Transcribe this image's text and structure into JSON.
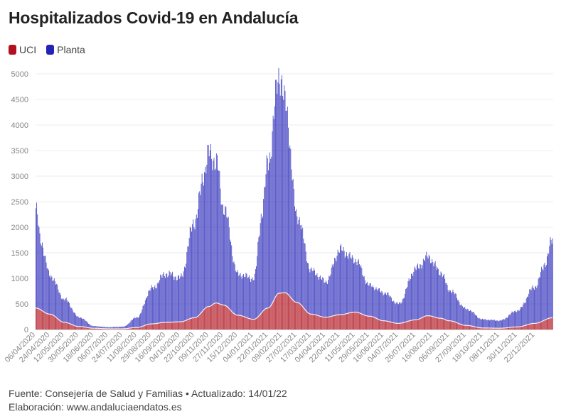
{
  "title": "Hospitalizados Covid-19 en Andalucía",
  "legend": [
    {
      "label": "UCI",
      "color": "#b0121f"
    },
    {
      "label": "Planta",
      "color": "#2323b8"
    }
  ],
  "footer": {
    "source": "Fuente: Consejería de Salud y Familias • Actualizado: 14/01/22",
    "credit": "Elaboración: www.andaluciaendatos.es"
  },
  "chart_data": {
    "type": "bar",
    "stacked": true,
    "title": "Hospitalizados Covid-19 en Andalucía",
    "xlabel": "",
    "ylabel": "",
    "ylim": [
      0,
      5000
    ],
    "yticks": [
      0,
      500,
      1000,
      1500,
      2000,
      2500,
      3000,
      3500,
      4000,
      4500,
      5000
    ],
    "x_tick_labels": [
      "06/04/2020",
      "24/04/2020",
      "12/05/2020",
      "30/05/2020",
      "18/06/2020",
      "06/07/2020",
      "24/07/2020",
      "11/08/2020",
      "29/08/2020",
      "16/09/2020",
      "04/10/2020",
      "22/10/2020",
      "09/11/2020",
      "27/11/2020",
      "15/12/2020",
      "04/01/2021",
      "22/01/2021",
      "09/02/2021",
      "27/02/2021",
      "17/03/2021",
      "04/04/2021",
      "22/04/2021",
      "11/05/2021",
      "29/05/2021",
      "16/06/2021",
      "04/07/2021",
      "26/07/2021",
      "16/08/2021",
      "06/09/2021",
      "27/09/2021",
      "18/10/2021",
      "08/11/2021",
      "30/11/2021",
      "22/12/2021"
    ],
    "grid": true,
    "legend_position": "top-left",
    "series": [
      {
        "name": "UCI",
        "color": "#b0121f",
        "keypoints": [
          [
            "2020-04-06",
            420
          ],
          [
            "2020-04-24",
            300
          ],
          [
            "2020-05-12",
            140
          ],
          [
            "2020-05-30",
            60
          ],
          [
            "2020-06-18",
            25
          ],
          [
            "2020-07-06",
            15
          ],
          [
            "2020-07-24",
            15
          ],
          [
            "2020-08-11",
            40
          ],
          [
            "2020-08-29",
            110
          ],
          [
            "2020-09-16",
            140
          ],
          [
            "2020-10-04",
            150
          ],
          [
            "2020-10-22",
            230
          ],
          [
            "2020-11-09",
            450
          ],
          [
            "2020-11-18",
            520
          ],
          [
            "2020-11-27",
            480
          ],
          [
            "2020-12-15",
            280
          ],
          [
            "2021-01-04",
            200
          ],
          [
            "2021-01-22",
            420
          ],
          [
            "2021-02-05",
            710
          ],
          [
            "2021-02-12",
            720
          ],
          [
            "2021-02-27",
            530
          ],
          [
            "2021-03-17",
            300
          ],
          [
            "2021-04-04",
            240
          ],
          [
            "2021-04-22",
            290
          ],
          [
            "2021-05-11",
            340
          ],
          [
            "2021-05-29",
            260
          ],
          [
            "2021-06-16",
            170
          ],
          [
            "2021-07-04",
            120
          ],
          [
            "2021-07-26",
            190
          ],
          [
            "2021-08-10",
            270
          ],
          [
            "2021-08-26",
            220
          ],
          [
            "2021-09-06",
            170
          ],
          [
            "2021-09-27",
            80
          ],
          [
            "2021-10-18",
            30
          ],
          [
            "2021-11-08",
            25
          ],
          [
            "2021-11-30",
            50
          ],
          [
            "2021-12-22",
            120
          ],
          [
            "2022-01-13",
            230
          ]
        ]
      },
      {
        "name": "Planta",
        "color": "#2323b8",
        "keypoints": [
          [
            "2020-04-06",
            1950
          ],
          [
            "2020-04-12",
            1350
          ],
          [
            "2020-04-24",
            750
          ],
          [
            "2020-05-12",
            450
          ],
          [
            "2020-05-30",
            180
          ],
          [
            "2020-06-18",
            40
          ],
          [
            "2020-07-06",
            30
          ],
          [
            "2020-07-24",
            40
          ],
          [
            "2020-08-11",
            200
          ],
          [
            "2020-08-29",
            690
          ],
          [
            "2020-09-16",
            950
          ],
          [
            "2020-10-04",
            860
          ],
          [
            "2020-10-22",
            1900
          ],
          [
            "2020-11-03",
            2700
          ],
          [
            "2020-11-09",
            3000
          ],
          [
            "2020-11-18",
            2750
          ],
          [
            "2020-11-27",
            1900
          ],
          [
            "2020-12-15",
            800
          ],
          [
            "2021-01-04",
            800
          ],
          [
            "2021-01-14",
            1950
          ],
          [
            "2021-01-22",
            2900
          ],
          [
            "2021-02-05",
            4300
          ],
          [
            "2021-02-12",
            3700
          ],
          [
            "2021-02-27",
            1700
          ],
          [
            "2021-03-17",
            850
          ],
          [
            "2021-04-04",
            700
          ],
          [
            "2021-04-22",
            1270
          ],
          [
            "2021-05-11",
            1020
          ],
          [
            "2021-05-29",
            600
          ],
          [
            "2021-06-16",
            550
          ],
          [
            "2021-07-04",
            380
          ],
          [
            "2021-07-26",
            1000
          ],
          [
            "2021-08-10",
            1150
          ],
          [
            "2021-08-26",
            900
          ],
          [
            "2021-09-06",
            600
          ],
          [
            "2021-09-27",
            320
          ],
          [
            "2021-10-18",
            165
          ],
          [
            "2021-11-08",
            150
          ],
          [
            "2021-11-30",
            320
          ],
          [
            "2021-12-22",
            720
          ],
          [
            "2022-01-04",
            1120
          ],
          [
            "2022-01-13",
            1550
          ]
        ]
      }
    ]
  }
}
